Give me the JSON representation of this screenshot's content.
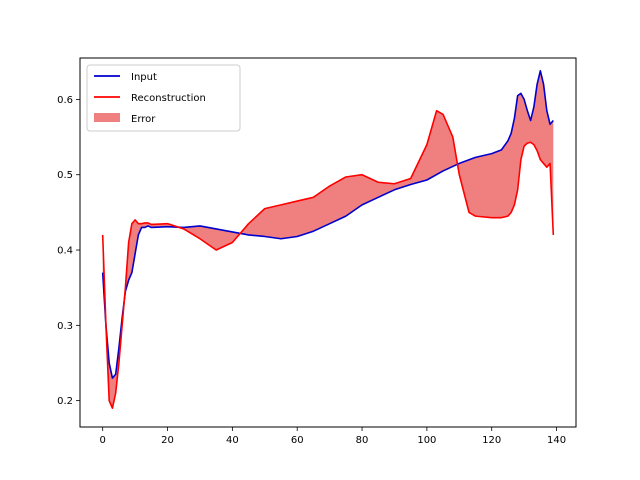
{
  "chart_data": {
    "type": "line",
    "title": "",
    "xlabel": "",
    "ylabel": "",
    "xlim": [
      -7,
      146
    ],
    "ylim": [
      0.165,
      0.655
    ],
    "x_ticks": [
      0,
      20,
      40,
      60,
      80,
      100,
      120,
      140
    ],
    "y_ticks": [
      0.2,
      0.3,
      0.4,
      0.5,
      0.6
    ],
    "legend_position": "top-left",
    "grid": false,
    "colors": {
      "input": "#0000cc",
      "reconstruction": "#ff0000",
      "error_fill": "#f08080"
    },
    "series": [
      {
        "name": "Input",
        "x": [
          0,
          1,
          2,
          3,
          4,
          5,
          6,
          7,
          8,
          9,
          10,
          11,
          12,
          13,
          14,
          15,
          20,
          25,
          30,
          35,
          40,
          45,
          50,
          55,
          60,
          65,
          70,
          75,
          80,
          85,
          90,
          95,
          100,
          105,
          110,
          115,
          120,
          123,
          125,
          126,
          127,
          128,
          129,
          130,
          131,
          132,
          133,
          134,
          135,
          136,
          137,
          138,
          139
        ],
        "values": [
          0.37,
          0.3,
          0.25,
          0.23,
          0.235,
          0.27,
          0.31,
          0.345,
          0.36,
          0.37,
          0.395,
          0.42,
          0.43,
          0.43,
          0.432,
          0.43,
          0.431,
          0.43,
          0.432,
          0.428,
          0.424,
          0.42,
          0.418,
          0.415,
          0.418,
          0.425,
          0.435,
          0.445,
          0.46,
          0.47,
          0.48,
          0.487,
          0.493,
          0.505,
          0.515,
          0.523,
          0.528,
          0.533,
          0.545,
          0.555,
          0.575,
          0.605,
          0.608,
          0.6,
          0.585,
          0.572,
          0.59,
          0.62,
          0.638,
          0.62,
          0.585,
          0.567,
          0.572
        ]
      },
      {
        "name": "Reconstruction",
        "x": [
          0,
          1,
          2,
          3,
          4,
          5,
          6,
          7,
          8,
          9,
          10,
          11,
          12,
          13,
          14,
          15,
          20,
          25,
          30,
          35,
          40,
          45,
          50,
          55,
          60,
          65,
          70,
          75,
          80,
          85,
          90,
          95,
          100,
          103,
          105,
          108,
          110,
          113,
          115,
          120,
          123,
          125,
          126,
          127,
          128,
          129,
          130,
          131,
          132,
          133,
          134,
          135,
          136,
          137,
          138,
          139
        ],
        "values": [
          0.42,
          0.3,
          0.2,
          0.19,
          0.21,
          0.25,
          0.3,
          0.35,
          0.41,
          0.435,
          0.44,
          0.435,
          0.435,
          0.436,
          0.436,
          0.434,
          0.435,
          0.428,
          0.415,
          0.4,
          0.41,
          0.435,
          0.455,
          0.46,
          0.465,
          0.47,
          0.485,
          0.497,
          0.5,
          0.49,
          0.488,
          0.495,
          0.54,
          0.585,
          0.58,
          0.55,
          0.5,
          0.45,
          0.445,
          0.443,
          0.443,
          0.445,
          0.45,
          0.46,
          0.48,
          0.52,
          0.538,
          0.542,
          0.543,
          0.54,
          0.532,
          0.52,
          0.515,
          0.51,
          0.515,
          0.42
        ]
      }
    ],
    "fill": {
      "name": "Error",
      "between": [
        "Input",
        "Reconstruction"
      ]
    }
  }
}
